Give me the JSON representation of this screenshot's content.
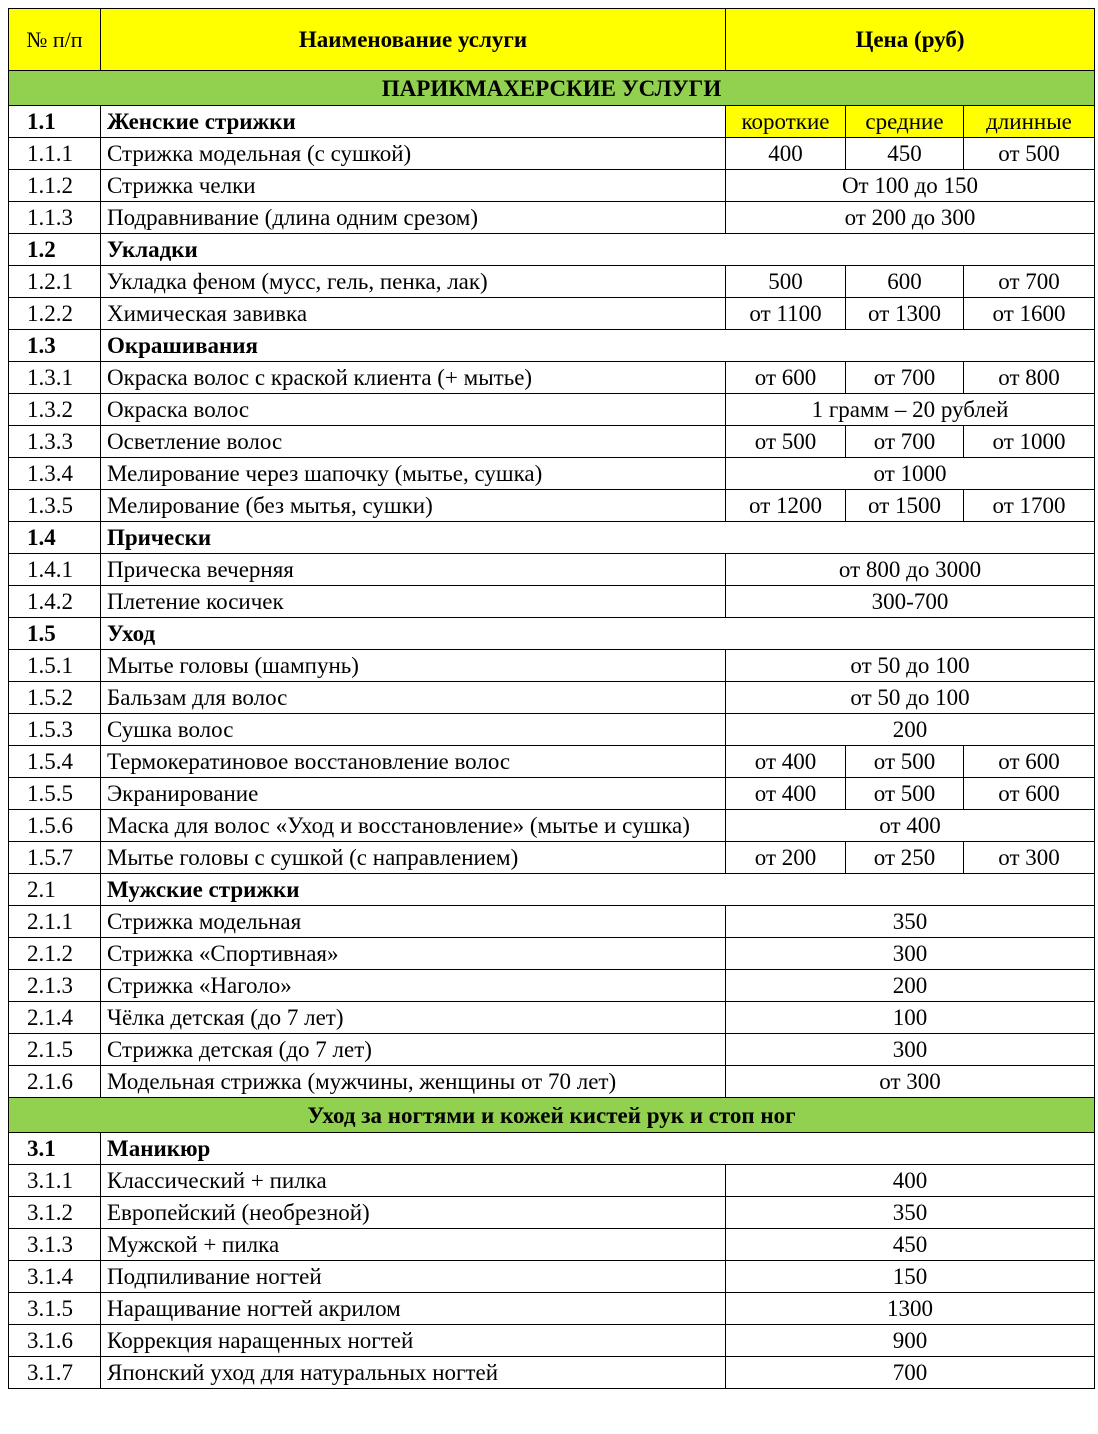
{
  "header": {
    "num": "№ п/п",
    "name": "Наименование услуги",
    "price": "Цена (руб)"
  },
  "colors": {
    "header_bg": "#ffff00",
    "section_bg": "#92d050"
  },
  "sections": [
    {
      "title": "ПАРИКМАХЕРСКИЕ УСЛУГИ",
      "rows": [
        {
          "type": "group",
          "num": "1.1",
          "name": "Женские стрижки",
          "num_bold": true,
          "labels": [
            "короткие",
            "средние",
            "длинные"
          ]
        },
        {
          "num": "1.1.1",
          "name": "Стрижка модельная (с сушкой)",
          "prices": [
            "400",
            "450",
            "от 500"
          ]
        },
        {
          "num": "1.1.2",
          "name": "Стрижка челки",
          "prices": [
            "От 100 до 150"
          ]
        },
        {
          "num": "1.1.3",
          "name": "Подравнивание (длина одним срезом)",
          "prices": [
            "от 200 до 300"
          ]
        },
        {
          "type": "group",
          "num": "1.2",
          "name": "Укладки",
          "num_bold": true
        },
        {
          "num": "1.2.1",
          "name": "Укладка феном (мусс, гель, пенка, лак)",
          "prices": [
            "500",
            "600",
            "от 700"
          ]
        },
        {
          "num": "1.2.2",
          "name": "Химическая завивка",
          "prices": [
            "от 1100",
            "от 1300",
            "от 1600"
          ]
        },
        {
          "type": "group",
          "num": "1.3",
          "name": "Окрашивания",
          "num_bold": true
        },
        {
          "num": "1.3.1",
          "name": "Окраска волос с краской клиента (+ мытье)",
          "prices": [
            "от 600",
            "от 700",
            "от 800"
          ]
        },
        {
          "num": "1.3.2",
          "name": "Окраска волос",
          "prices": [
            "1 грамм – 20 рублей"
          ]
        },
        {
          "num": "1.3.3",
          "name": "Осветление волос",
          "prices": [
            "от 500",
            "от 700",
            "от 1000"
          ]
        },
        {
          "num": "1.3.4",
          "name": "Мелирование через шапочку (мытье, сушка)",
          "prices": [
            "от 1000"
          ]
        },
        {
          "num": "1.3.5",
          "name": "Мелирование (без мытья, сушки)",
          "prices": [
            "от 1200",
            "от 1500",
            "от 1700"
          ]
        },
        {
          "type": "group",
          "num": "1.4",
          "name": "Прически",
          "num_bold": true
        },
        {
          "num": "1.4.1",
          "name": "Прическа вечерняя",
          "prices": [
            "от 800 до 3000"
          ]
        },
        {
          "num": "1.4.2",
          "name": "Плетение косичек",
          "prices": [
            "300-700"
          ]
        },
        {
          "type": "group",
          "num": "1.5",
          "name": "Уход",
          "num_bold": true
        },
        {
          "num": "1.5.1",
          "name": "Мытье головы (шампунь)",
          "prices": [
            "от 50 до 100"
          ]
        },
        {
          "num": "1.5.2",
          "name": "Бальзам для волос",
          "prices": [
            "от 50 до 100"
          ]
        },
        {
          "num": "1.5.3",
          "name": "Сушка волос",
          "prices": [
            "200"
          ]
        },
        {
          "num": "1.5.4",
          "name": "Термокератиновое восстановление волос",
          "prices": [
            "от 400",
            "от 500",
            "от 600"
          ]
        },
        {
          "num": "1.5.5",
          "name": "Экранирование",
          "prices": [
            "от 400",
            "от 500",
            "от 600"
          ]
        },
        {
          "num": "1.5.6",
          "name": "Маска для волос «Уход и восстановление» (мытье и сушка)",
          "prices": [
            "от 400"
          ],
          "wrap": true
        },
        {
          "num": "1.5.7",
          "name": "Мытье головы с сушкой (с направлением)",
          "prices": [
            "от 200",
            "от 250",
            "от 300"
          ]
        },
        {
          "type": "group",
          "num": "2.1",
          "name": "Мужские стрижки",
          "num_bold": false
        },
        {
          "num": "2.1.1",
          "name": "Стрижка модельная",
          "prices": [
            "350"
          ]
        },
        {
          "num": "2.1.2",
          "name": "Стрижка «Спортивная»",
          "prices": [
            "300"
          ]
        },
        {
          "num": "2.1.3",
          "name": "Стрижка «Наголо»",
          "prices": [
            "200"
          ]
        },
        {
          "num": "2.1.4",
          "name": "Чёлка детская (до 7 лет)",
          "prices": [
            "100"
          ]
        },
        {
          "num": "2.1.5",
          "name": "Стрижка детская (до 7 лет)",
          "prices": [
            "300"
          ]
        },
        {
          "num": "2.1.6",
          "name": "Модельная стрижка (мужчины, женщины от 70 лет)",
          "prices": [
            "от 300"
          ]
        }
      ]
    },
    {
      "title": "Уход за ногтями и кожей кистей рук и стоп ног",
      "rows": [
        {
          "type": "group",
          "num": "3.1",
          "name": "Маникюр",
          "num_bold": true
        },
        {
          "num": "3.1.1",
          "name": "Классический + пилка",
          "prices": [
            "400"
          ]
        },
        {
          "num": "3.1.2",
          "name": "Европейский (необрезной)",
          "prices": [
            "350"
          ]
        },
        {
          "num": "3.1.3",
          "name": "Мужской + пилка",
          "prices": [
            "450"
          ]
        },
        {
          "num": "3.1.4",
          "name": "Подпиливание ногтей",
          "prices": [
            "150"
          ]
        },
        {
          "num": "3.1.5",
          "name": "Наращивание ногтей акрилом",
          "prices": [
            "1300"
          ]
        },
        {
          "num": "3.1.6",
          "name": "Коррекция наращенных ногтей",
          "prices": [
            "900"
          ]
        },
        {
          "num": "3.1.7",
          "name": "Японский уход для натуральных ногтей",
          "prices": [
            "700"
          ]
        }
      ]
    }
  ]
}
